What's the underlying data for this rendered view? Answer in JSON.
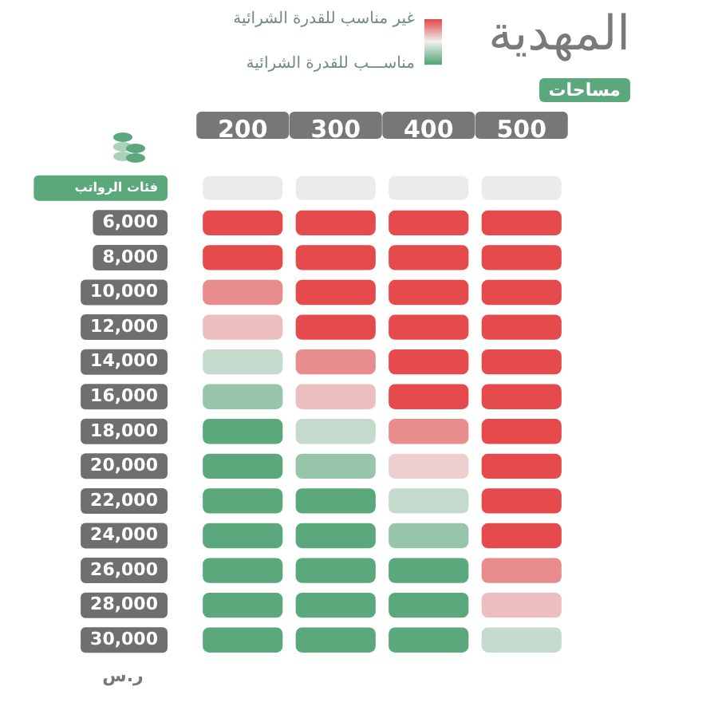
{
  "chart_data": {
    "type": "heatmap",
    "title": "المهدية",
    "subtitle": "مساحات",
    "categories": [
      "200",
      "300",
      "400",
      "500"
    ],
    "y_categories": [
      "فئات الرواتب",
      "6,000",
      "8,000",
      "10,000",
      "12,000",
      "14,000",
      "16,000",
      "18,000",
      "20,000",
      "22,000",
      "24,000",
      "26,000",
      "28,000",
      "30,000"
    ],
    "cells": [
      [
        null,
        null,
        null,
        null
      ],
      [
        1,
        1,
        1,
        1
      ],
      [
        1,
        1,
        1,
        1
      ],
      [
        0.8,
        1,
        1,
        1
      ],
      [
        0.65,
        1,
        1,
        1
      ],
      [
        0.35,
        0.8,
        1,
        1
      ],
      [
        0.2,
        0.65,
        1,
        1
      ],
      [
        0,
        0.35,
        0.8,
        1
      ],
      [
        0,
        0.2,
        0.6,
        1
      ],
      [
        0,
        0,
        0.35,
        1
      ],
      [
        0,
        0,
        0.2,
        1
      ],
      [
        0,
        0,
        0,
        0.8
      ],
      [
        0,
        0,
        0,
        0.65
      ],
      [
        0,
        0,
        0,
        0.35
      ]
    ],
    "clim": [
      0,
      1
    ],
    "cticks": [
      {
        "value": 1,
        "label": "غير مناسب للقدرة الشرائية"
      },
      {
        "value": 0,
        "label": "مناســـب للقدرة الشرائية"
      }
    ],
    "annotations": [
      "ر.س"
    ]
  }
}
